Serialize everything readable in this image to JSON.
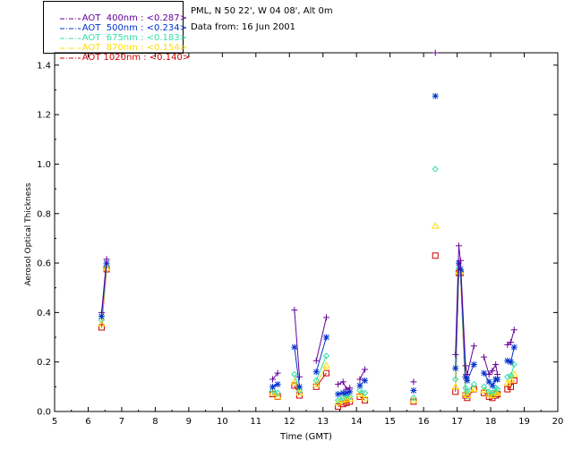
{
  "header": {
    "site_line": "PML, N 50 22', W 04 08', Alt 0m",
    "date_line": "Data from: 16 Jun 2001"
  },
  "legend": [
    {
      "label": "AOT  400nm : <0.287>",
      "color": "#660099",
      "marker": "plus"
    },
    {
      "label": "AOT  500nm : <0.234>",
      "color": "#0033cc",
      "marker": "star"
    },
    {
      "label": "AOT  675nm : <0.183>",
      "color": "#33ddaa",
      "marker": "diamond"
    },
    {
      "label": "AOT  870nm : <0.154>",
      "color": "#ffdd00",
      "marker": "triangle"
    },
    {
      "label": "AOT 1020nm : <0.140>",
      "color": "#cc0000",
      "marker": "square"
    }
  ],
  "chart_data": {
    "type": "scatter",
    "title": "",
    "xlabel": "Time (GMT)",
    "ylabel": "Aerosol Optical Thickness",
    "xlim": [
      5,
      20
    ],
    "ylim": [
      0,
      1.45
    ],
    "xticks": [
      "5",
      "6",
      "7",
      "8",
      "9",
      "10",
      "11",
      "12",
      "13",
      "14",
      "15",
      "16",
      "17",
      "18",
      "19",
      "20"
    ],
    "yticks": [
      "0.0",
      "0.2",
      "0.4",
      "0.6",
      "0.8",
      "1.0",
      "1.2",
      "1.4"
    ],
    "x": [
      6.4,
      6.55,
      11.5,
      11.65,
      12.15,
      12.3,
      12.8,
      13.1,
      13.45,
      13.6,
      13.7,
      13.8,
      14.1,
      14.25,
      15.7,
      16.35,
      16.95,
      17.05,
      17.1,
      17.25,
      17.3,
      17.5,
      17.8,
      17.95,
      18.05,
      18.15,
      18.2,
      18.5,
      18.6,
      18.7
    ],
    "series": [
      {
        "name": "400nm",
        "values": [
          0.4,
          0.615,
          0.13,
          0.155,
          0.41,
          0.14,
          0.205,
          0.38,
          0.11,
          0.12,
          0.09,
          0.095,
          0.13,
          0.17,
          0.12,
          1.45,
          0.23,
          0.67,
          0.61,
          0.185,
          0.15,
          0.265,
          0.22,
          0.15,
          0.165,
          0.19,
          0.15,
          0.27,
          0.28,
          0.33
        ]
      },
      {
        "name": "500nm",
        "values": [
          0.385,
          0.6,
          0.1,
          0.11,
          0.26,
          0.1,
          0.16,
          0.3,
          0.07,
          0.075,
          0.075,
          0.08,
          0.105,
          0.125,
          0.085,
          1.275,
          0.175,
          0.6,
          0.575,
          0.14,
          0.125,
          0.19,
          0.155,
          0.12,
          0.105,
          0.13,
          0.13,
          0.205,
          0.2,
          0.26
        ]
      },
      {
        "name": "675nm",
        "values": [
          0.37,
          0.59,
          0.085,
          0.075,
          0.15,
          0.085,
          0.125,
          0.225,
          0.045,
          0.055,
          0.065,
          0.06,
          0.085,
          0.075,
          0.055,
          0.98,
          0.13,
          0.58,
          0.57,
          0.095,
          0.08,
          0.11,
          0.1,
          0.08,
          0.075,
          0.095,
          0.09,
          0.14,
          0.145,
          0.19
        ]
      },
      {
        "name": "870nm",
        "values": [
          0.355,
          0.58,
          0.075,
          0.06,
          0.12,
          0.075,
          0.11,
          0.185,
          0.035,
          0.045,
          0.05,
          0.05,
          0.07,
          0.055,
          0.045,
          0.75,
          0.1,
          0.565,
          0.565,
          0.075,
          0.065,
          0.09,
          0.085,
          0.07,
          0.065,
          0.08,
          0.075,
          0.115,
          0.125,
          0.15
        ]
      },
      {
        "name": "1020nm",
        "values": [
          0.34,
          0.575,
          0.07,
          0.06,
          0.105,
          0.065,
          0.1,
          0.155,
          0.02,
          0.03,
          0.035,
          0.04,
          0.06,
          0.045,
          0.04,
          0.63,
          0.08,
          0.56,
          0.56,
          0.065,
          0.055,
          0.09,
          0.075,
          0.06,
          0.055,
          0.065,
          0.07,
          0.09,
          0.1,
          0.125
        ]
      }
    ],
    "line_segments": [
      [
        0,
        1
      ],
      [
        2,
        3
      ],
      [
        4,
        5
      ],
      [
        6,
        7
      ],
      [
        8,
        9,
        10,
        11
      ],
      [
        12,
        13
      ],
      [
        16,
        17,
        18,
        19,
        20,
        21
      ],
      [
        22,
        23,
        24,
        25,
        26
      ],
      [
        27,
        28,
        29
      ]
    ]
  }
}
